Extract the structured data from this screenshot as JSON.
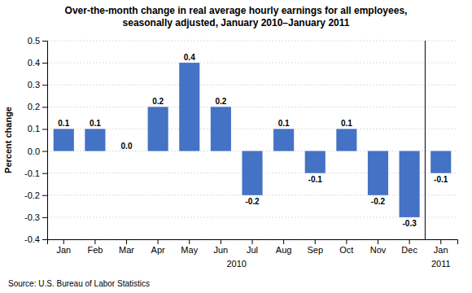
{
  "chart_data": {
    "type": "bar",
    "title": "Over-the-month change in real average hourly earnings for all employees,",
    "subtitle": "seasonally adjusted, January 2010–January 2011",
    "ylabel": "Percent change",
    "categories": [
      "Jan",
      "Feb",
      "Mar",
      "Apr",
      "May",
      "Jun",
      "Jul",
      "Aug",
      "Sep",
      "Oct",
      "Nov",
      "Dec",
      "Jan"
    ],
    "values": [
      0.1,
      0.1,
      0.0,
      0.2,
      0.4,
      0.2,
      -0.2,
      0.1,
      -0.1,
      0.1,
      -0.2,
      -0.3,
      -0.1
    ],
    "value_labels": [
      "0.1",
      "0.1",
      "0.0",
      "0.2",
      "0.4",
      "0.2",
      "-0.2",
      "0.1",
      "-0.1",
      "0.1",
      "-0.2",
      "-0.3",
      "-0.1"
    ],
    "data_labels": true,
    "color": "#4472C4",
    "ylim": [
      -0.4,
      0.5
    ],
    "yticks": [
      -0.4,
      -0.3,
      -0.2,
      -0.1,
      {
        "value": 0.0,
        "label": "0.0"
      },
      0.1,
      0.2,
      0.3,
      0.4,
      0.5
    ],
    "grid": true,
    "annotations": [
      "2010",
      "2011"
    ],
    "source": "Source: U.S. Bureau of Labor Statistics"
  }
}
